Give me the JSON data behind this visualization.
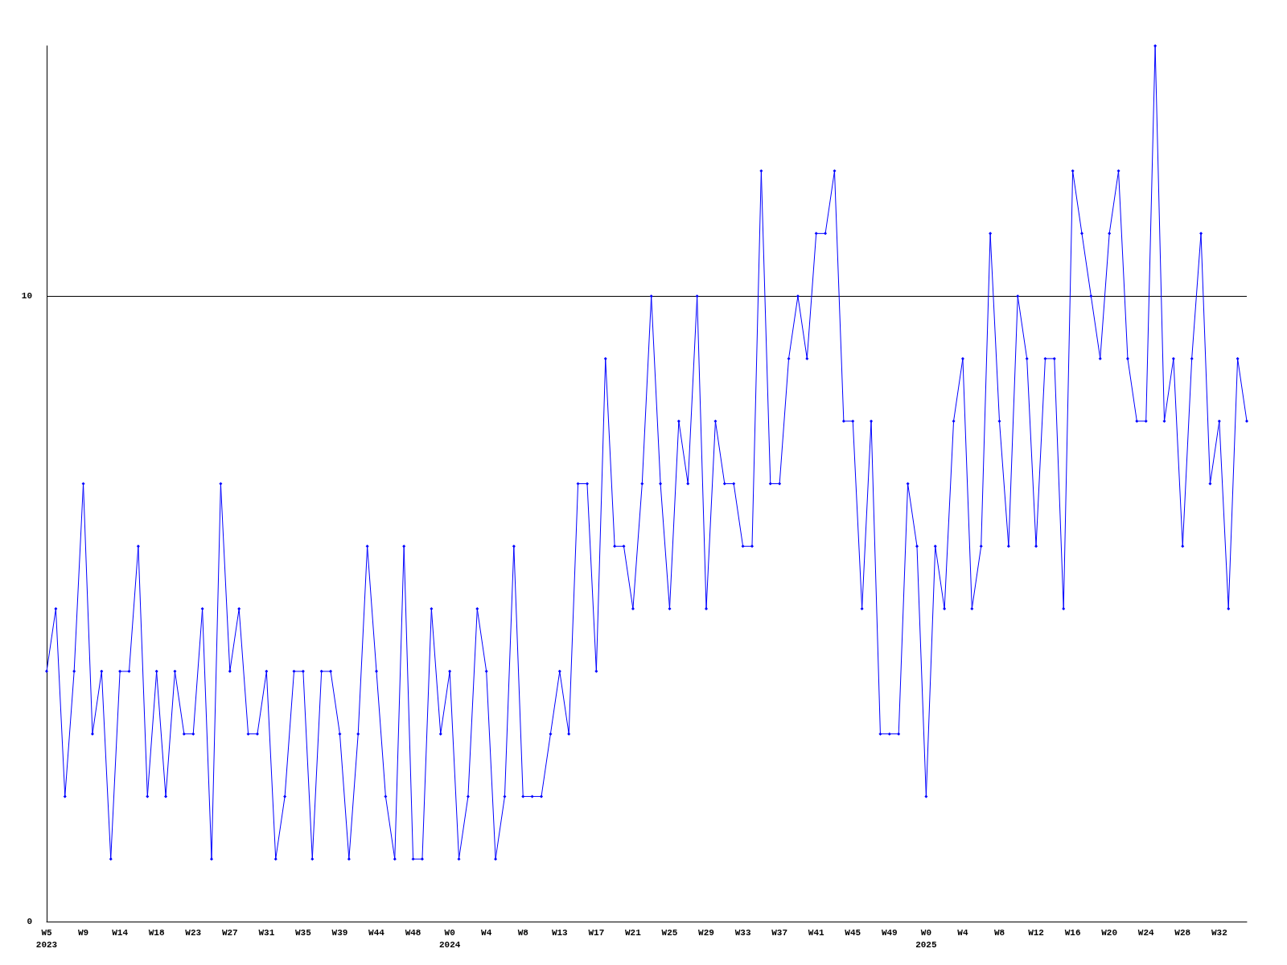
{
  "chart_data": {
    "type": "line",
    "categories": [
      "W5\n2023",
      null,
      null,
      null,
      "W9",
      null,
      null,
      null,
      "W14",
      null,
      null,
      null,
      "W18",
      null,
      null,
      null,
      "W23",
      null,
      null,
      null,
      "W27",
      null,
      null,
      null,
      "W31",
      null,
      null,
      null,
      "W35",
      null,
      null,
      null,
      "W39",
      null,
      null,
      null,
      "W44",
      null,
      null,
      null,
      "W48",
      null,
      null,
      null,
      "W0\n2024",
      null,
      null,
      null,
      "W4",
      null,
      null,
      null,
      "W8",
      null,
      null,
      null,
      "W13",
      null,
      null,
      null,
      "W17",
      null,
      null,
      null,
      "W21",
      null,
      null,
      null,
      "W25",
      null,
      null,
      null,
      "W29",
      null,
      null,
      null,
      "W33",
      null,
      null,
      null,
      "W37",
      null,
      null,
      null,
      "W41",
      null,
      null,
      null,
      "W45",
      null,
      null,
      null,
      "W49",
      null,
      null,
      null,
      "W0\n2025",
      null,
      null,
      null,
      "W4",
      null,
      null,
      null,
      "W8",
      null,
      null,
      null,
      "W12",
      null,
      null,
      null,
      "W16",
      null,
      null,
      null,
      "W20",
      null,
      null,
      null,
      "W24",
      null,
      null,
      null,
      "W28",
      null,
      null,
      null,
      "W32",
      null,
      null,
      null
    ],
    "series": [
      {
        "color": "#0000ff",
        "values": [
          4,
          5,
          2,
          4,
          7,
          3,
          4,
          1,
          4,
          4,
          6,
          2,
          4,
          2,
          4,
          3,
          3,
          5,
          1,
          7,
          4,
          5,
          3,
          3,
          4,
          1,
          2,
          4,
          4,
          1,
          4,
          4,
          3,
          1,
          3,
          6,
          4,
          2,
          1,
          6,
          1,
          1,
          5,
          3,
          4,
          1,
          2,
          5,
          4,
          1,
          2,
          6,
          2,
          2,
          2,
          3,
          4,
          3,
          7,
          7,
          4,
          9,
          6,
          6,
          5,
          7,
          10,
          7,
          5,
          8,
          7,
          10,
          5,
          8,
          7,
          7,
          6,
          6,
          12,
          7,
          7,
          9,
          10,
          9,
          11,
          11,
          12,
          8,
          8,
          5,
          8,
          3,
          3,
          3,
          7,
          6,
          2,
          6,
          5,
          8,
          9,
          5,
          6,
          11,
          8,
          6,
          10,
          9,
          6,
          9,
          9,
          5,
          12,
          11,
          10,
          9,
          11,
          12,
          9,
          8,
          8,
          14,
          8,
          9,
          6,
          9,
          11,
          7,
          8,
          5,
          9,
          8
        ]
      }
    ],
    "ylim": [
      0,
      14
    ],
    "yticks": [
      0,
      10
    ],
    "grid": "y",
    "marker": "diamond",
    "line_style": "solid"
  }
}
